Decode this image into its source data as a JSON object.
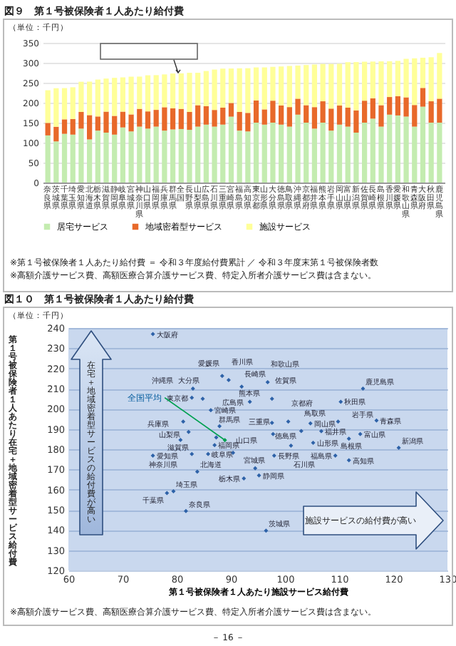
{
  "chart_data": [
    {
      "type": "bar",
      "stacked": true,
      "title": "図９　第１号被保険者１人あたり給付費",
      "categories": [
        "奈良県",
        "茨城県",
        "千葉県",
        "埼玉県",
        "愛知県",
        "北海道",
        "栃木県",
        "滋賀県",
        "静岡県",
        "岐阜県",
        "宮城県",
        "神奈川県",
        "山口県",
        "福岡県",
        "兵庫県",
        "群馬県",
        "全国",
        "長野県",
        "山梨県",
        "広島県",
        "石川県",
        "三重県",
        "宮崎県",
        "福島県",
        "高知県",
        "東京都",
        "山形県",
        "大分県",
        "徳島県",
        "鳥取県",
        "沖縄県",
        "京都府",
        "福井県",
        "熊本県",
        "岩手県",
        "岡山県",
        "富山県",
        "新潟県",
        "佐賀県",
        "長崎県",
        "島根県",
        "香川県",
        "愛媛県",
        "和歌山県",
        "青森県",
        "大阪府",
        "秋田県",
        "鹿児島県"
      ],
      "series": [
        {
          "name": "居宅サービス",
          "color": "#c4ecb0",
          "values": [
            118,
            103,
            122,
            120,
            135,
            108,
            130,
            125,
            120,
            138,
            128,
            140,
            135,
            140,
            130,
            133,
            134,
            132,
            140,
            145,
            140,
            145,
            165,
            130,
            128,
            150,
            145,
            150,
            145,
            140,
            170,
            150,
            135,
            150,
            130,
            145,
            140,
            125,
            150,
            160,
            140,
            170,
            168,
            165,
            140,
            190,
            150,
            150
          ]
        },
        {
          "name": "地域密着型サービス",
          "color": "#e8692a",
          "values": [
            31.4,
            36.7,
            36.3,
            39.2,
            41.8,
            60.9,
            35.5,
            52.6,
            47,
            39.6,
            42.6,
            44.6,
            43.2,
            42,
            58.6,
            52.8,
            50.5,
            44.8,
            53.7,
            46.4,
            41.8,
            42.5,
            34.3,
            46.8,
            46.5,
            55.5,
            38.2,
            55,
            48.1,
            49,
            40,
            43.7,
            53.9,
            53.5,
            55.2,
            47.8,
            47.5,
            55.7,
            55,
            51,
            53.7,
            44.2,
            48.3,
            48.2,
            54.2,
            47,
            53.5,
            60
          ]
        },
        {
          "name": "施設サービス",
          "color": "#ffff99",
          "values": [
            81.7,
            96.5,
            78.2,
            79.4,
            75.6,
            83.8,
            92.4,
            82.8,
            95.2,
            85.8,
            94.5,
            80.7,
            90.4,
            87,
            82.2,
            87.3,
            88.9,
            98,
            81.2,
            87.9,
            101.1,
            97.8,
            86.3,
            109.3,
            111.8,
            82.8,
            105.2,
            84.8,
            97.6,
            103,
            83,
            100.6,
            106.7,
            93.5,
            111.8,
            104.7,
            113.9,
            121,
            97.6,
            92,
            109.8,
            89.6,
            88.4,
            96.8,
            116.9,
            75.6,
            110.3,
            114.4
          ]
        }
      ],
      "ylim": [
        0,
        350
      ],
      "yticks": [
        0,
        50,
        100,
        150,
        200,
        250,
        300,
        350
      ],
      "grid": "y",
      "legend": "bottom",
      "annotations": [
        "（単位：千円）",
        "※第１号被保険者１人あたり給付費 ＝ 令和３年度給付費累計 ／ 令和３年度末第１号被保険者数",
        "※高額介護サービス費、高額医療合算介護サービス費、特定入所者介護サービス費は含まない。"
      ]
    },
    {
      "type": "scatter",
      "title": "図１０　第１号被保険者１人あたり給付費",
      "xlabel": "第１号被保険者１人あたり施設サービス給付費",
      "ylabel": "第１号被保険者１人あたり在宅＋地域密着型サービス給付費",
      "xlim": [
        60,
        130
      ],
      "xticks": [
        60,
        70,
        80,
        90,
        100,
        110,
        120,
        130
      ],
      "ylim": [
        120,
        240
      ],
      "yticks": [
        120,
        130,
        140,
        150,
        160,
        170,
        180,
        190,
        200,
        210,
        220,
        230,
        240
      ],
      "grid": "y",
      "marker": "diamond",
      "series": [
        {
          "color": "#2e62a8",
          "x": [
            81.7,
            96.5,
            78.2,
            79.4,
            75.6,
            83.8,
            92.4,
            82.8,
            95.2,
            85.8,
            94.5,
            80.7,
            90.4,
            87,
            82.2,
            87.3,
            98,
            81.2,
            87.9,
            101.1,
            97.8,
            86.3,
            109.3,
            111.8,
            82.8,
            105.2,
            84.8,
            97.6,
            103,
            83,
            100.6,
            106.7,
            93.5,
            111.8,
            104.7,
            113.9,
            121,
            97.6,
            92,
            109.8,
            89.6,
            88.4,
            96.8,
            116.9,
            75.6,
            110.3,
            114.4
          ],
          "values": [
            149.4,
            139.7,
            158.3,
            159.2,
            176.8,
            168.9,
            165.5,
            177.6,
            167,
            177.6,
            170.6,
            184.6,
            178.2,
            182,
            188.6,
            185.8,
            176.8,
            193.7,
            191.4,
            181.8,
            187.5,
            199.3,
            176.8,
            174.5,
            205.5,
            183.2,
            205,
            193.1,
            189,
            210,
            193.7,
            188.9,
            203.5,
            185.2,
            192.8,
            187.5,
            180.7,
            205,
            211,
            193.7,
            214.2,
            216.3,
            213.2,
            194.2,
            237,
            203.5,
            210
          ]
        },
        {
          "color": "#00a050",
          "x": [
            88.9
          ],
          "values": [
            184.5
          ]
        }
      ],
      "annotations": [
        {
          "text": "奈良県",
          "x": 81.7,
          "y": 149.4
        },
        {
          "text": "茨城県",
          "x": 96.5,
          "y": 139.7
        },
        {
          "text": "千葉県",
          "x": 78.2,
          "y": 158.3
        },
        {
          "text": "埼玉県",
          "x": 79.4,
          "y": 159.2
        },
        {
          "text": "愛知県",
          "x": 75.6,
          "y": 176.8
        },
        {
          "text": "北海道",
          "x": 83.8,
          "y": 168.9
        },
        {
          "text": "栃木県",
          "x": 92.4,
          "y": 165.5
        },
        {
          "text": "滋賀県",
          "x": 82.8,
          "y": 177.6
        },
        {
          "text": "静岡県",
          "x": 95.2,
          "y": 167
        },
        {
          "text": "岐阜県",
          "x": 85.8,
          "y": 177.6
        },
        {
          "text": "宮城県",
          "x": 94.5,
          "y": 170.6
        },
        {
          "text": "神奈川県",
          "x": 80.7,
          "y": 184.6
        },
        {
          "text": "山口県",
          "x": 90.4,
          "y": 178.2
        },
        {
          "text": "福岡県",
          "x": 87,
          "y": 182
        },
        {
          "text": "兵庫県",
          "x": 82.2,
          "y": 188.6
        },
        {
          "text": "群馬県",
          "x": 87.3,
          "y": 185.8
        },
        {
          "text": "長野県",
          "x": 98,
          "y": 176.8
        },
        {
          "text": "山梨県",
          "x": 81.2,
          "y": 193.7
        },
        {
          "text": "広島県",
          "x": 87.9,
          "y": 191.4
        },
        {
          "text": "石川県",
          "x": 101.1,
          "y": 181.8
        },
        {
          "text": "三重県",
          "x": 97.8,
          "y": 187.5
        },
        {
          "text": "宮崎県",
          "x": 86.3,
          "y": 199.3
        },
        {
          "text": "福島県",
          "x": 109.3,
          "y": 176.8
        },
        {
          "text": "高知県",
          "x": 111.8,
          "y": 174.5
        },
        {
          "text": "東京都",
          "x": 82.8,
          "y": 205.5
        },
        {
          "text": "山形県",
          "x": 105.2,
          "y": 183.2
        },
        {
          "text": "大分県",
          "x": 84.8,
          "y": 205
        },
        {
          "text": "徳島県",
          "x": 97.6,
          "y": 193.1
        },
        {
          "text": "鳥取県",
          "x": 103,
          "y": 189
        },
        {
          "text": "沖縄県",
          "x": 83,
          "y": 210
        },
        {
          "text": "京都府",
          "x": 100.6,
          "y": 193.7
        },
        {
          "text": "福井県",
          "x": 106.7,
          "y": 188.9
        },
        {
          "text": "熊本県",
          "x": 93.5,
          "y": 203.5
        },
        {
          "text": "岩手県",
          "x": 111.8,
          "y": 185.2
        },
        {
          "text": "岡山県",
          "x": 104.7,
          "y": 192.8
        },
        {
          "text": "富山県",
          "x": 113.9,
          "y": 187.5
        },
        {
          "text": "新潟県",
          "x": 121,
          "y": 180.7
        },
        {
          "text": "佐賀県",
          "x": 97.6,
          "y": 205
        },
        {
          "text": "長崎県",
          "x": 92,
          "y": 211
        },
        {
          "text": "島根県",
          "x": 109.8,
          "y": 193.7
        },
        {
          "text": "香川県",
          "x": 89.6,
          "y": 214.2
        },
        {
          "text": "愛媛県",
          "x": 88.4,
          "y": 216.3
        },
        {
          "text": "和歌山県",
          "x": 96.8,
          "y": 213.2
        },
        {
          "text": "青森県",
          "x": 116.9,
          "y": 194.2
        },
        {
          "text": "大阪府",
          "x": 75.6,
          "y": 237
        },
        {
          "text": "秋田県",
          "x": 110.3,
          "y": 203.5
        },
        {
          "text": "鹿児島県",
          "x": 114.4,
          "y": 210
        },
        {
          "text": "全国平均",
          "x": 88.9,
          "y": 184.5
        },
        "（単位：千円）",
        "在宅＋地域密着型サービスの給付費が高い",
        "施設サービスの給付費が高い",
        "※高額介護サービス費、高額医療合算介護サービス費、特定入所者介護サービス費は含まない。",
        "－ 16 －"
      ]
    }
  ]
}
